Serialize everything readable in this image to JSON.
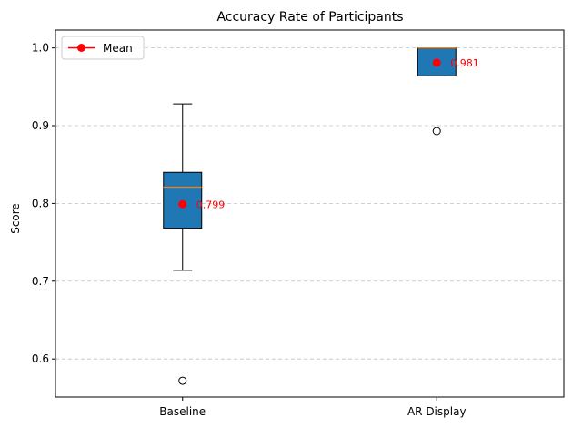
{
  "chart_data": {
    "type": "boxplot",
    "title": "Accuracy Rate of Participants",
    "xlabel": "",
    "ylabel": "Score",
    "ylim": [
      0.551,
      1.023
    ],
    "yticks": [
      0.6,
      0.7,
      0.8,
      0.9,
      1.0
    ],
    "ytick_labels": [
      "0.6",
      "0.7",
      "0.8",
      "0.9",
      "1.0"
    ],
    "grid": "y-dashed",
    "categories": [
      "Baseline",
      "AR Display"
    ],
    "boxes": [
      {
        "name": "Baseline",
        "whisker_low": 0.714,
        "q1": 0.768,
        "median": 0.821,
        "q3": 0.84,
        "whisker_high": 0.928,
        "outliers": [
          0.572
        ],
        "mean": 0.799,
        "mean_label": "0.799"
      },
      {
        "name": "AR Display",
        "whisker_low": 0.964,
        "q1": 0.964,
        "median": 1.0,
        "q3": 1.0,
        "whisker_high": 1.0,
        "outliers": [
          0.893
        ],
        "mean": 0.981,
        "mean_label": "0.981"
      }
    ],
    "legend": {
      "position": "top-left",
      "entries": [
        {
          "label": "Mean"
        }
      ]
    },
    "colors": {
      "box_fill": "#1f77b4",
      "median": "#ff7f0e",
      "mean": "#ff0000",
      "grid": "#c0c0c0"
    }
  }
}
